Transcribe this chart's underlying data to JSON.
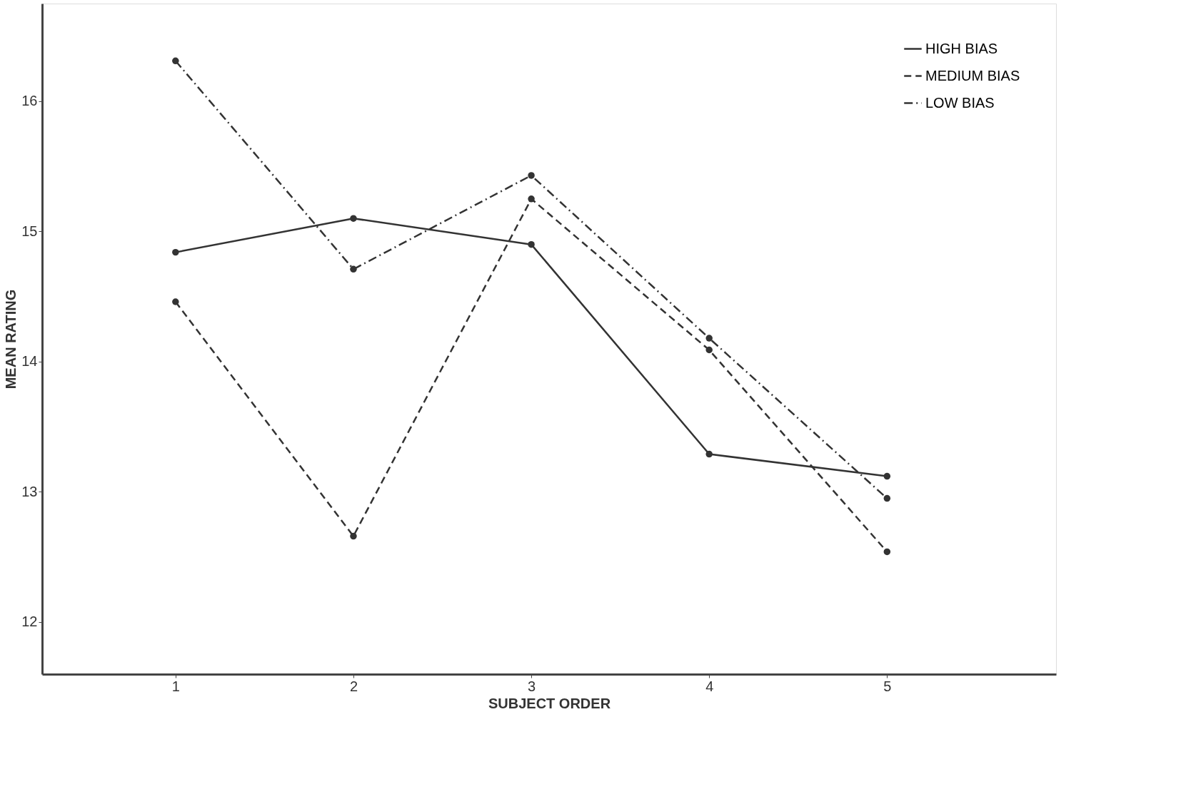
{
  "chart_data": {
    "type": "line",
    "xlabel": "SUBJECT ORDER",
    "ylabel": "MEAN RATING",
    "x": [
      1,
      2,
      3,
      4,
      5
    ],
    "series": [
      {
        "name": "HIGH BIAS",
        "color": "#333333",
        "line_style": "solid",
        "values": [
          14.84,
          15.1,
          14.9,
          13.29,
          13.12
        ]
      },
      {
        "name": "MEDIUM BIAS",
        "color": "#333333",
        "line_style": "dashed",
        "values": [
          14.46,
          12.66,
          15.25,
          14.09,
          12.54
        ]
      },
      {
        "name": "LOW BIAS",
        "color": "#333333",
        "line_style": "dashdot",
        "values": [
          16.31,
          14.71,
          15.43,
          14.18,
          12.95
        ]
      }
    ],
    "xlim": [
      0.25,
      5.95
    ],
    "xticks": [
      1,
      2,
      3,
      4,
      5
    ],
    "ylim": [
      11.6,
      16.75
    ],
    "yticks": [
      12,
      13,
      14,
      15,
      16
    ],
    "marker": "circle",
    "legend": "top right",
    "grid": false
  }
}
